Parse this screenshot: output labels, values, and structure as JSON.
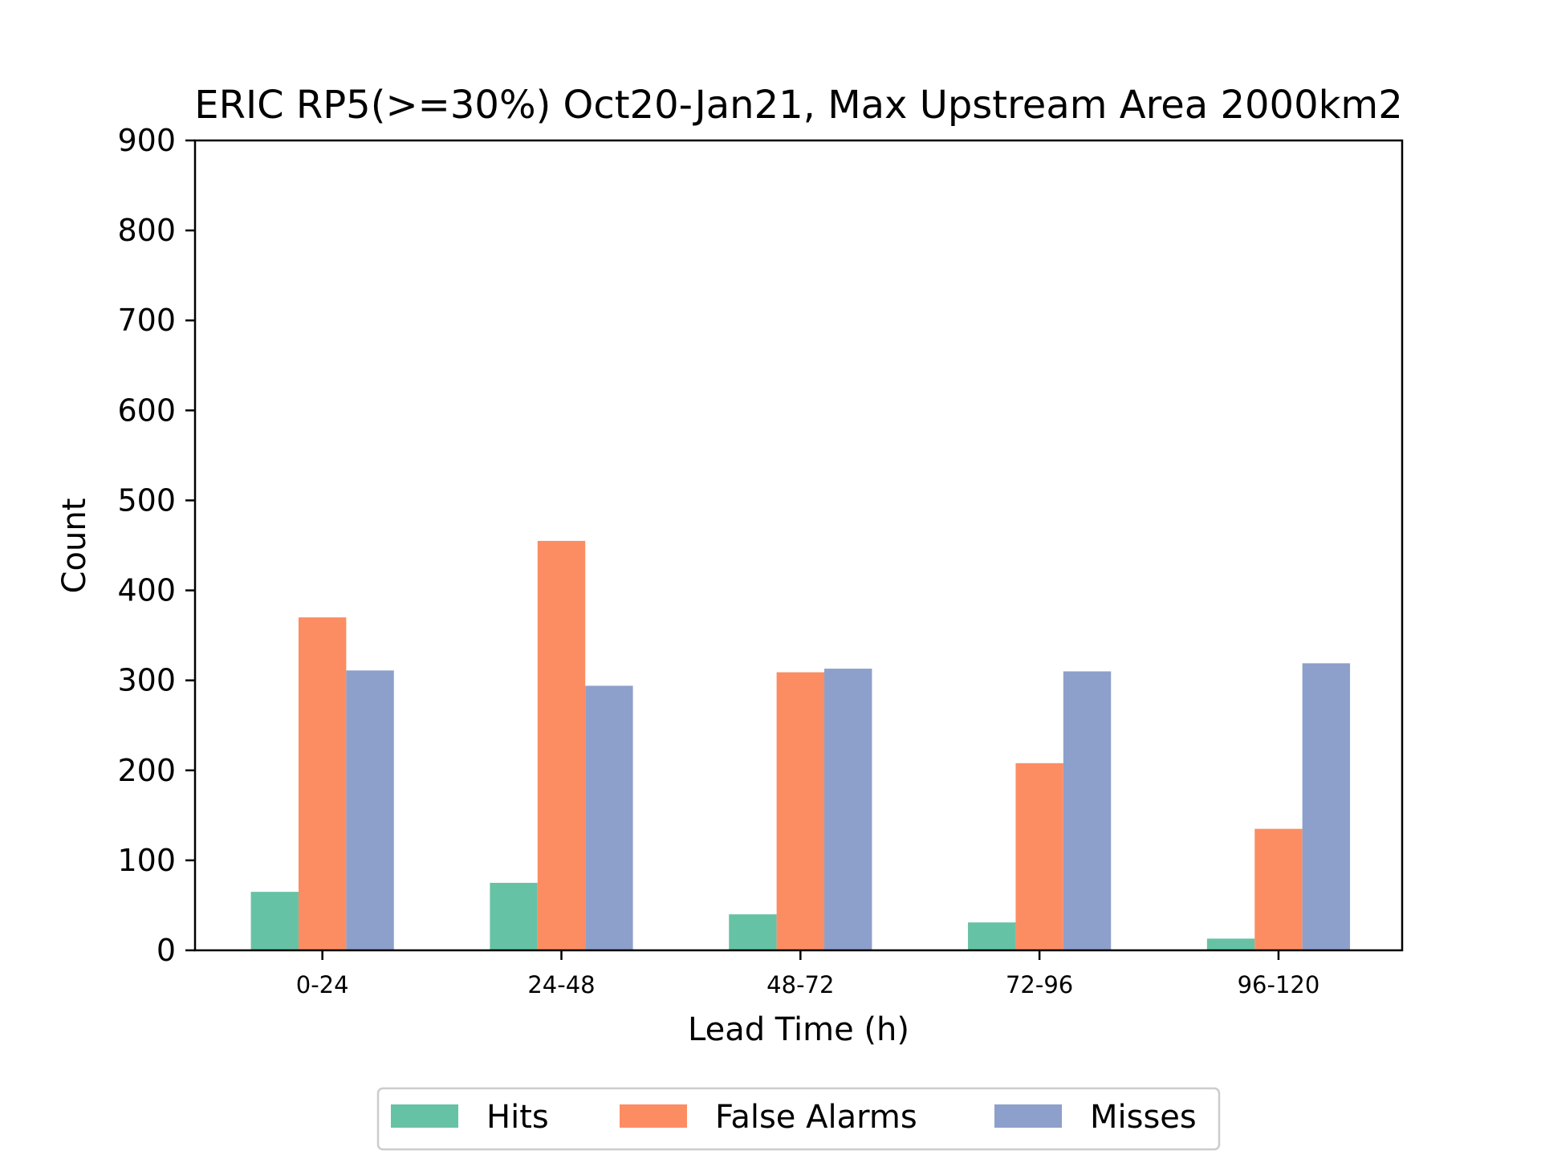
{
  "chart_data": {
    "type": "bar",
    "title": "ERIC RP5(>=30%) Oct20-Jan21, Max Upstream Area 2000km2",
    "xlabel": "Lead Time (h)",
    "ylabel": "Count",
    "ylim": [
      0,
      900
    ],
    "yticks": [
      "0",
      "100",
      "200",
      "300",
      "400",
      "500",
      "600",
      "700",
      "800",
      "900"
    ],
    "categories": [
      "0-24",
      "24-48",
      "48-72",
      "72-96",
      "96-120"
    ],
    "series": [
      {
        "name": "Hits",
        "color": "#66c2a5",
        "values": [
          65,
          75,
          40,
          31,
          13
        ]
      },
      {
        "name": "False Alarms",
        "color": "#fc8d62",
        "values": [
          370,
          455,
          309,
          208,
          135
        ]
      },
      {
        "name": "Misses",
        "color": "#8da0cb",
        "values": [
          311,
          294,
          313,
          310,
          319
        ]
      }
    ],
    "grid": false,
    "legend_position": "bottom-center, below plot"
  }
}
